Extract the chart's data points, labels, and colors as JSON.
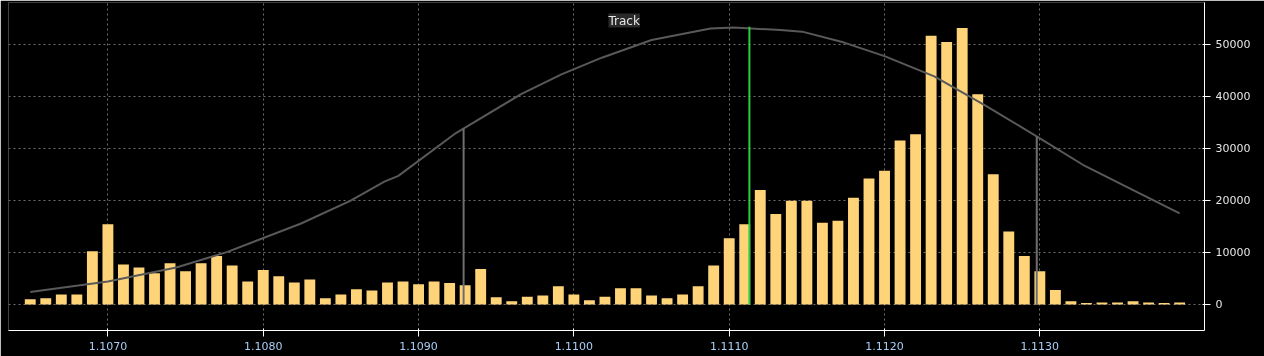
{
  "chart_data": {
    "type": "histogram",
    "bins": [
      1.10645,
      1.10655,
      1.10665,
      1.10675,
      1.10685,
      1.10695,
      1.10705,
      1.10715,
      1.10725,
      1.10735,
      1.10745,
      1.10755,
      1.10765,
      1.10775,
      1.10785,
      1.10795,
      1.10805,
      1.10815,
      1.10825,
      1.10835,
      1.10845,
      1.10855,
      1.10865,
      1.10875,
      1.10885,
      1.10895,
      1.10905,
      1.10915,
      1.10925,
      1.10935,
      1.10945,
      1.10955,
      1.10965,
      1.10975,
      1.10985,
      1.10995,
      1.11005,
      1.11015,
      1.11025,
      1.11035,
      1.11045,
      1.11055,
      1.11065,
      1.11075,
      1.11085,
      1.11095,
      1.11105,
      1.11115,
      1.11125,
      1.11135,
      1.11145,
      1.11155,
      1.11165,
      1.11175,
      1.11185,
      1.11195,
      1.11205,
      1.11215,
      1.11225,
      1.11235,
      1.11245,
      1.11255,
      1.11265,
      1.11275,
      1.11285,
      1.11295,
      1.11305,
      1.11315,
      1.11325,
      1.11335,
      1.11345,
      1.11355,
      1.11365,
      1.11375,
      1.11385,
      1.11395
    ],
    "series": [
      {
        "color": "#ffd479",
        "values": [
          1000,
          1200,
          1900,
          1900,
          10200,
          15400,
          7700,
          7100,
          6000,
          7900,
          6400,
          7900,
          9300,
          7500,
          4400,
          6600,
          5400,
          4200,
          4800,
          1200,
          1900,
          2900,
          2700,
          4200,
          4400,
          3900,
          4400,
          4100,
          3700,
          6800,
          1400,
          600,
          1500,
          1700,
          3500,
          1900,
          800,
          1500,
          3100,
          3100,
          1700,
          1200,
          1900,
          3500,
          7500,
          12700,
          15400,
          22000,
          17400,
          19900,
          19900,
          15700,
          16100,
          20500,
          24200,
          25700,
          31500,
          32700,
          51600,
          50400,
          53100,
          40400,
          25000,
          14000,
          9300,
          6400,
          2800,
          600,
          300,
          400,
          400,
          600,
          400,
          300,
          400
        ]
      },
      {
        "type": "line",
        "color": "#595959",
        "x": [
          1.1065,
          1.107,
          1.10744,
          1.10777,
          1.10824,
          1.10856,
          1.10878,
          1.10887,
          1.10923,
          1.10966,
          1.10992,
          1.11018,
          1.1105,
          1.11088,
          1.11103,
          1.11133,
          1.11147,
          1.11174,
          1.112,
          1.11232,
          1.11265,
          1.11299,
          1.11329,
          1.11361,
          1.1139
        ],
        "values": [
          2400,
          4400,
          7100,
          10100,
          15500,
          19900,
          23600,
          24700,
          32700,
          40400,
          44200,
          47400,
          50800,
          53000,
          53200,
          52700,
          52400,
          50300,
          47700,
          43800,
          38200,
          32100,
          26600,
          21800,
          17500
        ]
      }
    ],
    "ref_lines": [
      {
        "axis": "x",
        "value": 1.10929,
        "color": "#6e6e6e"
      },
      {
        "axis": "x",
        "value": 1.11113,
        "color": "#2ecc40"
      },
      {
        "axis": "x",
        "value": 1.11298,
        "color": "#6e6e6e"
      }
    ],
    "annotations": [
      "Track"
    ],
    "xlim": [
      1.10636,
      1.11406
    ],
    "ylim": [
      -5000,
      58000
    ],
    "xticks": [
      {
        "value": 1.107,
        "label": "1.1070"
      },
      {
        "value": 1.108,
        "label": "1.1080"
      },
      {
        "value": 1.109,
        "label": "1.1090"
      },
      {
        "value": 1.11,
        "label": "1.1100"
      },
      {
        "value": 1.111,
        "label": "1.1110"
      },
      {
        "value": 1.112,
        "label": "1.1120"
      },
      {
        "value": 1.113,
        "label": "1.1130"
      }
    ],
    "yticks": [
      0,
      10000,
      20000,
      30000,
      40000,
      50000
    ],
    "grid": true,
    "legend": false
  }
}
